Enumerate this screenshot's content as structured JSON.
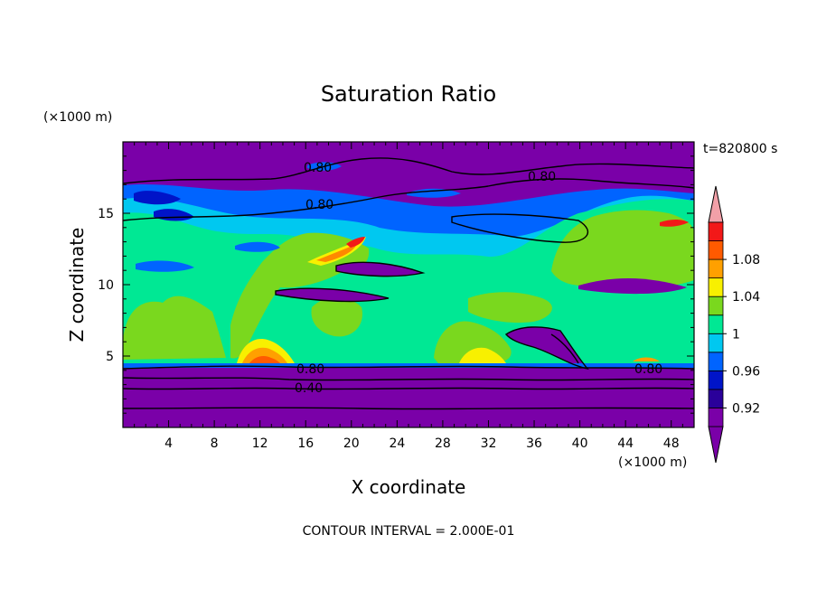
{
  "chart_data": {
    "type": "heatmap",
    "title": "Saturation Ratio",
    "xlabel": "X coordinate",
    "ylabel": "Z coordinate",
    "x_units": "(×1000 m)",
    "y_units": "(×1000 m)",
    "time_label": "t=820800 s",
    "footer": "CONTOUR INTERVAL = 2.000E-01",
    "xlim": [
      0,
      50
    ],
    "ylim": [
      0,
      20
    ],
    "x_ticks": [
      "4",
      "8",
      "12",
      "16",
      "20",
      "24",
      "28",
      "32",
      "36",
      "40",
      "44",
      "48"
    ],
    "y_ticks": [
      "5",
      "10",
      "15"
    ],
    "colorbar": {
      "levels": [
        0.9,
        0.92,
        0.94,
        0.96,
        0.98,
        1.0,
        1.02,
        1.04,
        1.06,
        1.08,
        1.1
      ],
      "tick_labels": [
        "0.92",
        "0.96",
        "1",
        "1.04",
        "1.08"
      ],
      "colors": [
        "#7a00a8",
        "#2a009a",
        "#0014c8",
        "#0064ff",
        "#00c8f0",
        "#00e894",
        "#7ad81e",
        "#f8f000",
        "#ffa000",
        "#ff5a00",
        "#f21818"
      ],
      "over_color": "#f2a0a8",
      "under_color": "#7a00a8"
    },
    "contour_labels": [
      "0.80",
      "0.80",
      "0.80",
      "0.80",
      "0.80",
      "0.40"
    ]
  }
}
